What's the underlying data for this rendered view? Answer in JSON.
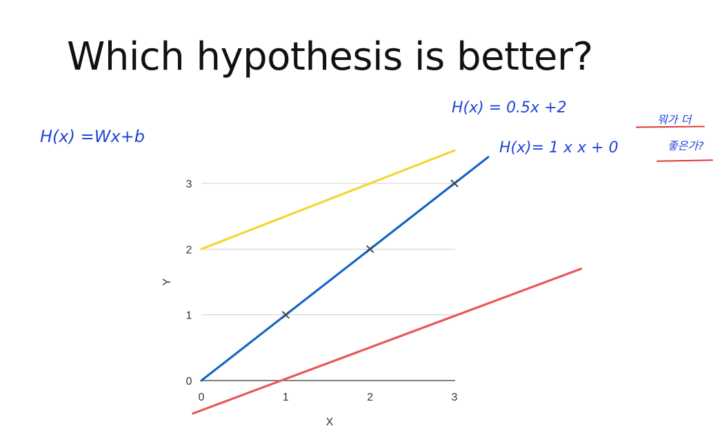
{
  "title": "Which hypothesis is better?",
  "annotations": {
    "general_form": "H(x) =Wx+b",
    "line_yellow": "H(x) = 0.5x +2",
    "line_blue": "H(x)= 1 x x + 0",
    "question_1": "뭐가 더",
    "question_2": "좋은가?"
  },
  "chart_data": {
    "type": "line",
    "xlabel": "X",
    "ylabel": "Y",
    "x_ticks": [
      "0",
      "1",
      "2",
      "3"
    ],
    "y_ticks": [
      "0",
      "1",
      "2",
      "3"
    ],
    "xlim": [
      0,
      3
    ],
    "ylim": [
      0,
      3
    ],
    "grid": true,
    "points": [
      {
        "x": 1,
        "y": 1
      },
      {
        "x": 2,
        "y": 2
      },
      {
        "x": 3,
        "y": 3
      }
    ],
    "series": [
      {
        "color": "#f2d831",
        "x": [
          0,
          3
        ],
        "y": [
          2,
          3.5
        ]
      },
      {
        "color": "#1565c0",
        "x": [
          0,
          3.4
        ],
        "y": [
          0,
          3.4
        ]
      },
      {
        "color": "#e9565a",
        "x": [
          -0.1,
          4.5
        ],
        "y": [
          -0.5,
          1.7
        ]
      }
    ]
  }
}
